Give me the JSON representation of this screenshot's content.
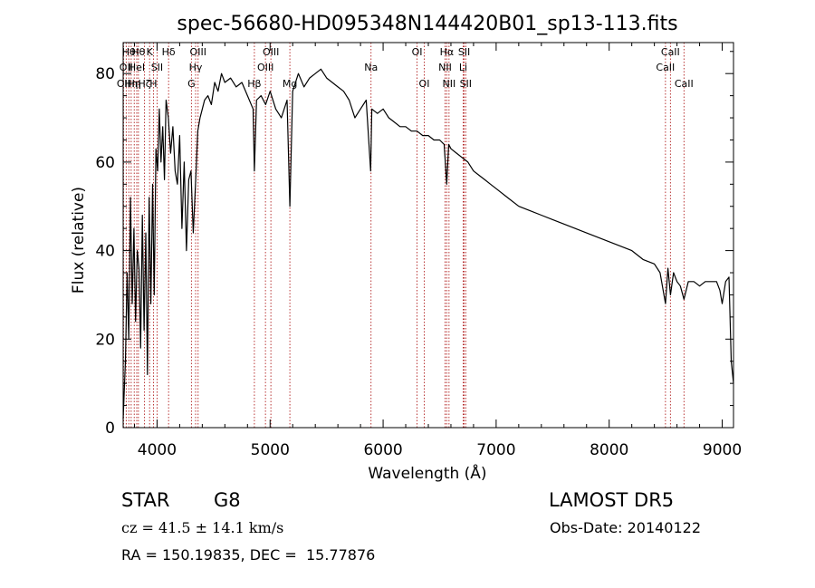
{
  "chart_data": {
    "type": "line",
    "title": "spec-56680-HD095348N144420B01_sp13-113.fits",
    "xlabel": "Wavelength (Å)",
    "ylabel": "Flux (relative)",
    "xlim": [
      3700,
      9100
    ],
    "ylim": [
      0,
      87
    ],
    "x_ticks": [
      4000,
      5000,
      6000,
      7000,
      8000,
      9000
    ],
    "y_ticks": [
      0,
      20,
      40,
      60,
      80
    ],
    "grid": false,
    "line_color": "#000000",
    "marker_color": "#b22222",
    "series": [
      {
        "x": [
          3700,
          3720,
          3735,
          3750,
          3765,
          3780,
          3795,
          3810,
          3825,
          3840,
          3855,
          3870,
          3885,
          3900,
          3915,
          3930,
          3945,
          3960,
          3975,
          3990,
          4005,
          4020,
          4035,
          4050,
          4065,
          4080,
          4100,
          4120,
          4140,
          4160,
          4180,
          4200,
          4220,
          4240,
          4260,
          4280,
          4300,
          4320,
          4340,
          4360,
          4380,
          4400,
          4420,
          4450,
          4480,
          4510,
          4540,
          4570,
          4600,
          4650,
          4700,
          4750,
          4800,
          4850,
          4861,
          4880,
          4920,
          4960,
          5000,
          5050,
          5100,
          5150,
          5175,
          5200,
          5250,
          5300,
          5350,
          5400,
          5450,
          5500,
          5550,
          5600,
          5650,
          5700,
          5750,
          5800,
          5850,
          5890,
          5900,
          5950,
          6000,
          6050,
          6100,
          6150,
          6200,
          6250,
          6300,
          6350,
          6400,
          6450,
          6500,
          6540,
          6563,
          6580,
          6600,
          6650,
          6700,
          6750,
          6800,
          6850,
          6900,
          6950,
          7000,
          7100,
          7200,
          7300,
          7400,
          7500,
          7600,
          7700,
          7800,
          7900,
          8000,
          8100,
          8200,
          8300,
          8400,
          8450,
          8498,
          8520,
          8542,
          8570,
          8600,
          8630,
          8662,
          8700,
          8750,
          8800,
          8850,
          8900,
          8950,
          8980,
          9000,
          9030,
          9060,
          9080,
          9100
        ],
        "y": [
          2,
          15,
          35,
          20,
          52,
          28,
          45,
          24,
          40,
          36,
          18,
          48,
          22,
          44,
          12,
          52,
          28,
          55,
          30,
          63,
          58,
          72,
          60,
          68,
          56,
          74,
          70,
          62,
          68,
          58,
          55,
          66,
          45,
          60,
          40,
          56,
          58,
          44,
          55,
          67,
          70,
          72,
          74,
          75,
          73,
          78,
          76,
          80,
          78,
          79,
          77,
          78,
          75,
          72,
          58,
          74,
          75,
          73,
          76,
          72,
          70,
          74,
          50,
          76,
          80,
          77,
          79,
          80,
          81,
          79,
          78,
          77,
          76,
          74,
          70,
          72,
          74,
          58,
          72,
          71,
          72,
          70,
          69,
          68,
          68,
          67,
          67,
          66,
          66,
          65,
          65,
          64,
          55,
          64,
          63,
          62,
          61,
          60,
          58,
          57,
          56,
          55,
          54,
          52,
          50,
          49,
          48,
          47,
          46,
          45,
          44,
          43,
          42,
          41,
          40,
          38,
          37,
          35,
          28,
          36,
          30,
          35,
          33,
          32,
          29,
          33,
          33,
          32,
          33,
          33,
          33,
          31,
          28,
          33,
          34,
          15,
          10
        ]
      }
    ],
    "line_markers": [
      {
        "x": 3704,
        "label": "OII",
        "row": 3
      },
      {
        "x": 3727,
        "label": "OII",
        "row": 2
      },
      {
        "x": 3750,
        "label": "Hθ",
        "row": 1
      },
      {
        "x": 3771,
        "label": "Hη",
        "row": 3
      },
      {
        "x": 3798,
        "label": "Hη",
        "row": 3
      },
      {
        "x": 3820,
        "label": "HeI",
        "row": 2
      },
      {
        "x": 3835,
        "label": "Hθ",
        "row": 1
      },
      {
        "x": 3889,
        "label": "Hζ",
        "row": 3
      },
      {
        "x": 3934,
        "label": "K",
        "row": 1
      },
      {
        "x": 3968,
        "label": "H",
        "row": 3
      },
      {
        "x": 4000,
        "label": "SII",
        "row": 2
      },
      {
        "x": 4102,
        "label": "Hδ",
        "row": 1
      },
      {
        "x": 4304,
        "label": "G",
        "row": 3
      },
      {
        "x": 4341,
        "label": "Hγ",
        "row": 2
      },
      {
        "x": 4363,
        "label": "OIII",
        "row": 1
      },
      {
        "x": 4861,
        "label": "Hβ",
        "row": 3
      },
      {
        "x": 4959,
        "label": "OIII",
        "row": 2
      },
      {
        "x": 5007,
        "label": "OIII",
        "row": 1
      },
      {
        "x": 5175,
        "label": "Mg",
        "row": 3
      },
      {
        "x": 5893,
        "label": "Na",
        "row": 2
      },
      {
        "x": 6300,
        "label": "OI",
        "row": 1
      },
      {
        "x": 6364,
        "label": "OI",
        "row": 3
      },
      {
        "x": 6548,
        "label": "NII",
        "row": 2
      },
      {
        "x": 6563,
        "label": "Hα",
        "row": 1
      },
      {
        "x": 6583,
        "label": "NII",
        "row": 3
      },
      {
        "x": 6708,
        "label": "Li",
        "row": 2
      },
      {
        "x": 6717,
        "label": "SII",
        "row": 1
      },
      {
        "x": 6731,
        "label": "SII",
        "row": 3
      },
      {
        "x": 8498,
        "label": "CaII",
        "row": 2
      },
      {
        "x": 8542,
        "label": "CaII",
        "row": 1
      },
      {
        "x": 8662,
        "label": "CaII",
        "row": 3
      }
    ]
  },
  "info": {
    "class_label": "STAR",
    "subclass": "G8",
    "survey": "LAMOST DR5",
    "cz": "cz = 41.5 ± 14.1 km/s",
    "obs_date": "Obs-Date: 20140122",
    "coords": "RA = 150.19835, DEC =  15.77876"
  }
}
